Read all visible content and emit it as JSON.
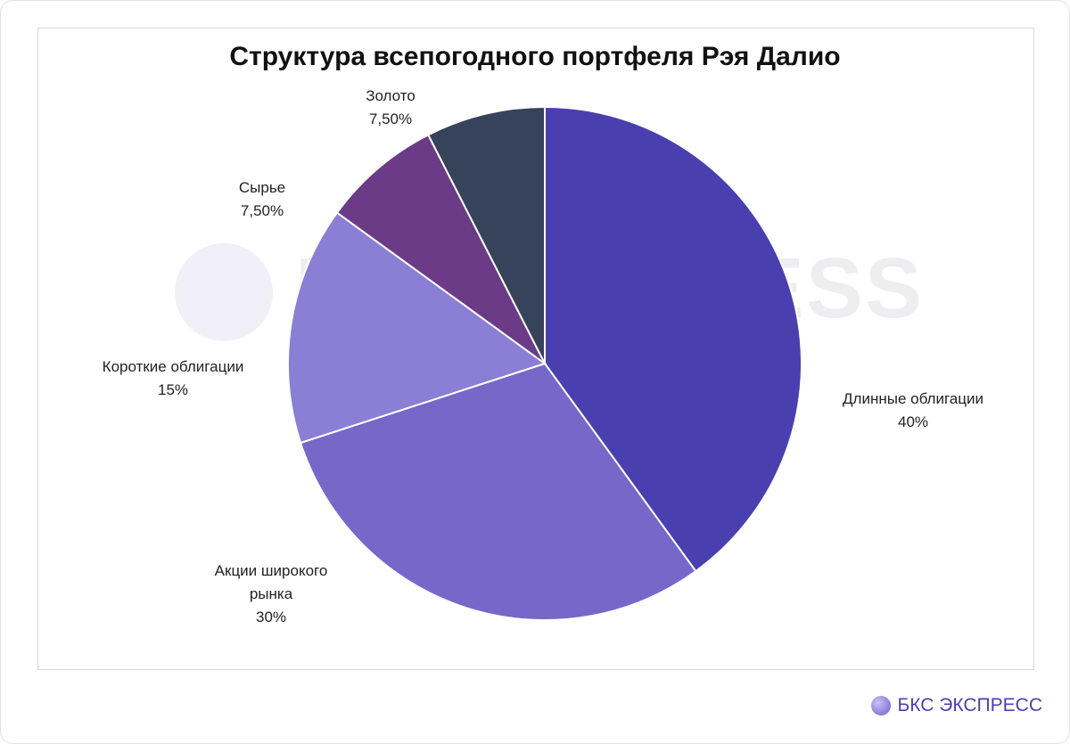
{
  "chart_data": {
    "type": "pie",
    "title": "Структура всепогодного портфеля Рэя Далио",
    "categories": [
      "Длинные облигации",
      "Акции широкого рынка",
      "Короткие облигации",
      "Сырье",
      "Золото"
    ],
    "values": [
      40,
      30,
      15,
      7.5,
      7.5
    ],
    "value_labels": [
      "40%",
      "30%",
      "15%",
      "7,50%",
      "7,50%"
    ],
    "colors": [
      "#4a3fae",
      "#7767c9",
      "#8a7ed5",
      "#6b3b87",
      "#37435a"
    ]
  },
  "watermark": "BCS EXPRESS",
  "footer": "БКС ЭКСПРЕСС"
}
